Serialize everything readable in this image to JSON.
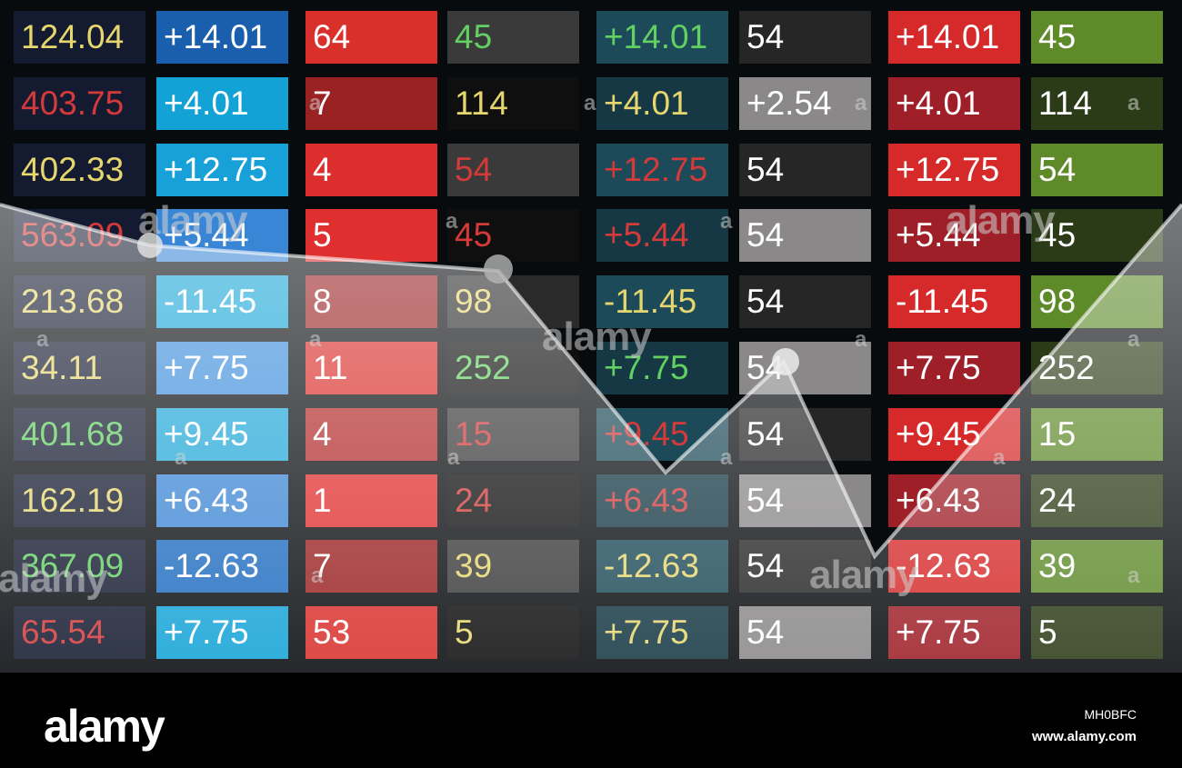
{
  "table": {
    "rows": [
      [
        "124.04",
        "+14.01",
        "64",
        "45",
        "+14.01",
        "54",
        "+14.01",
        "45"
      ],
      [
        "403.75",
        "+4.01",
        "7",
        "114",
        "+4.01",
        "+2.54",
        "+4.01",
        "114"
      ],
      [
        "402.33",
        "+12.75",
        "4",
        "54",
        "+12.75",
        "54",
        "+12.75",
        "54"
      ],
      [
        "563.09",
        "+5.44",
        "5",
        "45",
        "+5.44",
        "54",
        "+5.44",
        "45"
      ],
      [
        "213.68",
        "-11.45",
        "8",
        "98",
        "-11.45",
        "54",
        "-11.45",
        "98"
      ],
      [
        "34.11",
        "+7.75",
        "11",
        "252",
        "+7.75",
        "54",
        "+7.75",
        "252"
      ],
      [
        "401.68",
        "+9.45",
        "4",
        "15",
        "+9.45",
        "54",
        "+9.45",
        "15"
      ],
      [
        "162.19",
        "+6.43",
        "1",
        "24",
        "+6.43",
        "54",
        "+6.43",
        "24"
      ],
      [
        "367.09",
        "-12.63",
        "7",
        "39",
        "-12.63",
        "54",
        "-12.63",
        "39"
      ],
      [
        "65.54",
        "+7.75",
        "53",
        "5",
        "+7.75",
        "54",
        "+7.75",
        "5"
      ]
    ]
  },
  "watermarks": [
    "alamy",
    "alamy",
    "alamy",
    "alamy",
    "alamy"
  ],
  "watermark_marks": [
    "a",
    "a",
    "a",
    "a",
    "a",
    "a",
    "a",
    "a",
    "a",
    "a",
    "a",
    "a",
    "a",
    "a",
    "a",
    "a"
  ],
  "footer": {
    "logo": "alamy",
    "image_id": "MH0BFC",
    "site": "www.alamy.com"
  }
}
